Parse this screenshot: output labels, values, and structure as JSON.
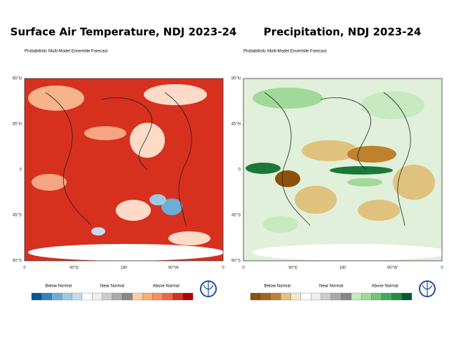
{
  "panels": [
    {
      "title": "Surface Air Temperature, NDJ 2023-24",
      "subtitle": "Probabilistic Multi-Model Ensemble Forecast",
      "lat_labels": [
        "90°N",
        "45°N",
        "0",
        "45°S",
        "90°S"
      ],
      "lon_labels": [
        "0",
        "90°E",
        "180",
        "90°W",
        "0"
      ],
      "legend": [
        "Below Normal",
        "Near Normal",
        "Above Normal"
      ]
    },
    {
      "title": "Precipitation, NDJ 2023-24",
      "subtitle": "Probabilistic Multi-Model Ensemble Forecast",
      "lat_labels": [
        "90°N",
        "45°N",
        "0",
        "45°S",
        "90°S"
      ],
      "lon_labels": [
        "0",
        "90°E",
        "180",
        "90°W",
        "0"
      ],
      "legend": [
        "Below Normal",
        "Near Normal",
        "Above Normal"
      ]
    }
  ]
}
